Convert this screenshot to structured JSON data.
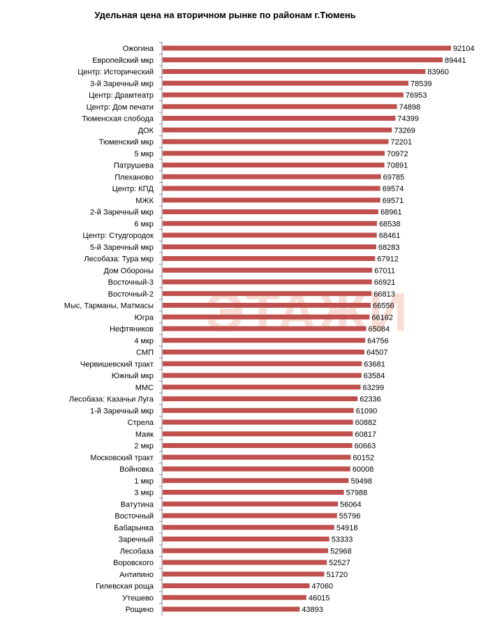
{
  "chart_data": {
    "type": "bar",
    "orientation": "horizontal",
    "title": "Удельная цена на вторичном рынке по районам г.Тюмень",
    "xlabel": "",
    "ylabel": "",
    "xlim": [
      0,
      92104
    ],
    "grid": false,
    "bar_color": "#c0504d",
    "watermark": "ЭТАЖИ",
    "categories": [
      "Ожогина",
      "Европейский мкр",
      "Центр: Исторический",
      "3-й Заречный мкр",
      "Центр: Драмтеатр",
      "Центр: Дом печати",
      "Тюменская слобода",
      "ДОК",
      "Тюменский мкр",
      "5 мкр",
      "Патрушева",
      "Плеханово",
      "Центр: КПД",
      "МЖК",
      "2-й Заречный мкр",
      "6 мкр",
      "Центр: Студгородок",
      "5-й Заречный мкр",
      "Лесобаза: Тура мкр",
      "Дом Обороны",
      "Восточный-3",
      "Восточный-2",
      "Мыс, Тарманы, Матмасы",
      "Югра",
      "Нефтяников",
      "4 мкр",
      "СМП",
      "Червишевский тракт",
      "Южный мкр",
      "ММС",
      "Лесобаза: Казачьи Луга",
      "1-й Заречный мкр",
      "Стрела",
      "Маяк",
      "2 мкр",
      "Московский тракт",
      "Войновка",
      "1 мкр",
      "3 мкр",
      "Ватутина",
      "Восточный",
      "Бабарынка",
      "Заречный",
      "Лесобаза",
      "Воровского",
      "Антипино",
      "Гилевская роща",
      "Утешево",
      "Рощино"
    ],
    "values": [
      92104,
      89441,
      83960,
      78539,
      76953,
      74898,
      74399,
      73269,
      72201,
      70972,
      70891,
      69785,
      69574,
      69571,
      68961,
      68538,
      68461,
      68283,
      67912,
      67011,
      66921,
      66813,
      66556,
      66162,
      65084,
      64756,
      64507,
      63681,
      63584,
      63299,
      62336,
      61090,
      60882,
      60817,
      60663,
      60152,
      60008,
      59498,
      57988,
      56064,
      55796,
      54918,
      53333,
      52968,
      52527,
      51720,
      47060,
      46015,
      43893
    ]
  }
}
